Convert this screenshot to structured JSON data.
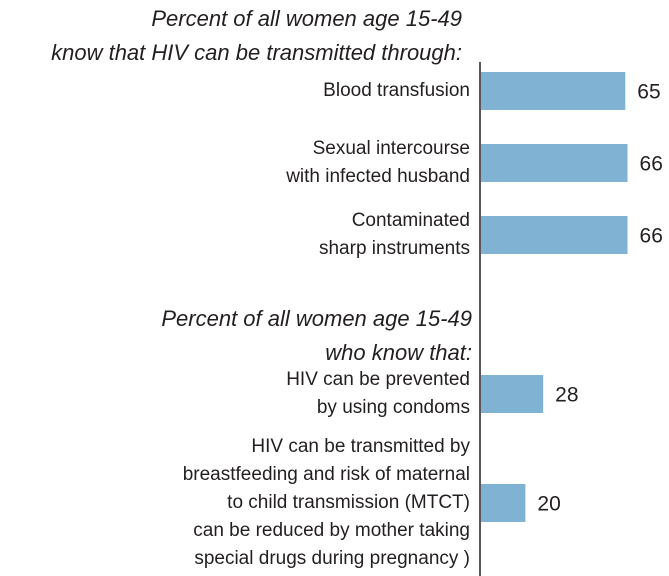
{
  "chart_data": {
    "type": "bar",
    "color": "#7fb2d3",
    "groups": [
      {
        "title": "Percent of all women age 15-49\nknow that HIV can be transmitted through:",
        "categories": [
          "Blood transfusion",
          "Sexual intercourse\nwith infected husband",
          "Contaminated\nsharp instruments"
        ],
        "values": [
          65,
          66,
          66
        ]
      },
      {
        "title": "Percent of all women age 15-49\nwho know that:",
        "categories": [
          "HIV can be prevented\nby using condoms",
          "HIV can be transmitted by\nbreastfeeding and risk of maternal\nto child transmission (MTCT)\ncan be reduced by mother taking\nspecial drugs during pregnancy )"
        ],
        "values": [
          28,
          20
        ]
      }
    ]
  }
}
